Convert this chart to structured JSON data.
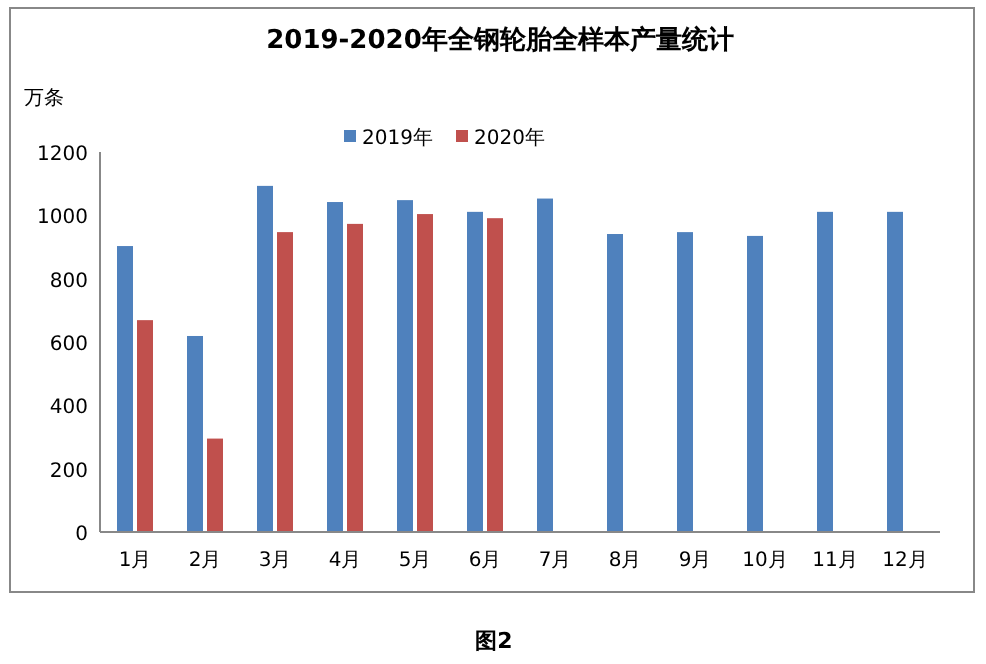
{
  "chart_data": {
    "type": "bar",
    "title": "2019-2020年全钢轮胎全样本产量统计",
    "ylabel": "万条",
    "categories": [
      "1月",
      "2月",
      "3月",
      "4月",
      "5月",
      "6月",
      "7月",
      "8月",
      "9月",
      "10月",
      "11月",
      "12月"
    ],
    "series": [
      {
        "name": "2019年",
        "color": "#4f81bd",
        "values": [
          903,
          619,
          1093,
          1042,
          1048,
          1011,
          1053,
          941,
          947,
          935,
          1011,
          1011
        ]
      },
      {
        "name": "2020年",
        "color": "#c0504d",
        "values": [
          669,
          295,
          947,
          973,
          1004,
          991,
          null,
          null,
          null,
          null,
          null,
          null
        ]
      }
    ],
    "ylim": [
      0,
      1200
    ],
    "yticks": [
      0,
      200,
      400,
      600,
      800,
      1000,
      1200
    ],
    "grid": false,
    "legend": "top",
    "annotations": [
      "图2"
    ]
  }
}
